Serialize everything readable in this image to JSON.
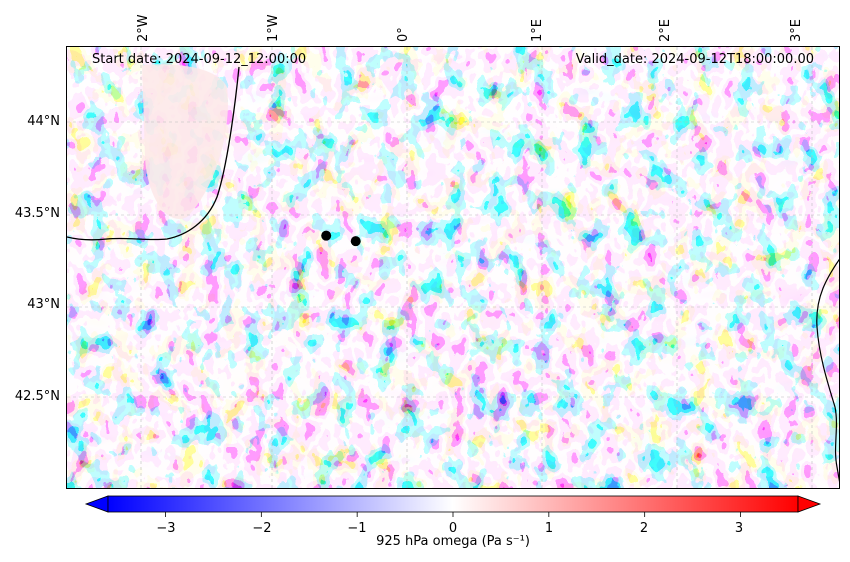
{
  "map": {
    "start_date": "Start date: 2024-09-12_12:00:00",
    "valid_date": "Valid_date: 2024-09-12T18:00:00.00",
    "lon_labels": [
      "2°W",
      "1°W",
      "0°",
      "1°E",
      "2°E",
      "3°E"
    ],
    "lat_labels": [
      "44°N",
      "43.5°N",
      "43°N",
      "42.5°N"
    ],
    "markers": [
      {
        "lon": -0.62,
        "lat": 43.38
      },
      {
        "lon": -0.4,
        "lat": 43.35
      }
    ],
    "colors": {
      "negative": "#0000ff",
      "neutral": "#ffffff",
      "positive": "#ff0000",
      "marker": "#000000"
    }
  },
  "colorbar": {
    "label": "925 hPa omega (Pa s⁻¹)",
    "min": -3.6,
    "max": 3.6,
    "ticks": [
      "−3",
      "−2",
      "−1",
      "0",
      "1",
      "2",
      "3"
    ],
    "tick_values": [
      -3,
      -2,
      -1,
      0,
      1,
      2,
      3
    ],
    "extend": "both",
    "cmap": "bwr"
  }
}
